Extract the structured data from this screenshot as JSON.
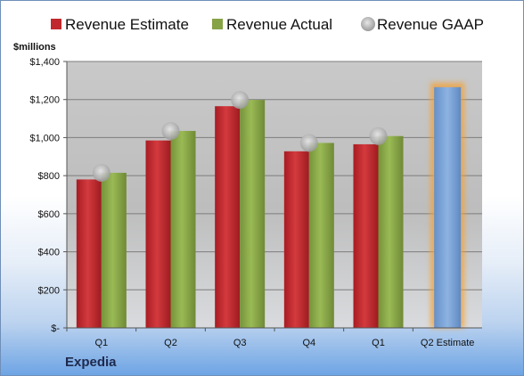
{
  "company": "Expedia",
  "chart_data": {
    "type": "bar",
    "ylabel": "$millions",
    "ylim": [
      0,
      1400
    ],
    "yticks": [
      0,
      200,
      400,
      600,
      800,
      1000,
      1200,
      1400
    ],
    "ytick_labels": [
      "$-",
      "$200",
      "$400",
      "$600",
      "$800",
      "$1,000",
      "$1,200",
      "$1,400"
    ],
    "categories": [
      "Q1",
      "Q2",
      "Q3",
      "Q4",
      "Q1",
      "Q2 Estimate"
    ],
    "grid": true,
    "legend_position": "top",
    "series": [
      {
        "name": "Revenue Estimate",
        "kind": "bar",
        "color": "#c0282d",
        "values": [
          780,
          985,
          1165,
          928,
          965,
          null
        ]
      },
      {
        "name": "Revenue Actual",
        "kind": "bar",
        "color": "#86a345",
        "values": [
          815,
          1035,
          1198,
          972,
          1008,
          null
        ]
      },
      {
        "name": "Revenue GAAP",
        "kind": "marker",
        "color": "#b8b8b8",
        "values": [
          815,
          1035,
          1198,
          972,
          1008,
          null
        ]
      },
      {
        "name": "",
        "kind": "highlight-bar",
        "color": "#7aa3d6",
        "values": [
          null,
          null,
          null,
          null,
          null,
          1265
        ]
      }
    ]
  }
}
